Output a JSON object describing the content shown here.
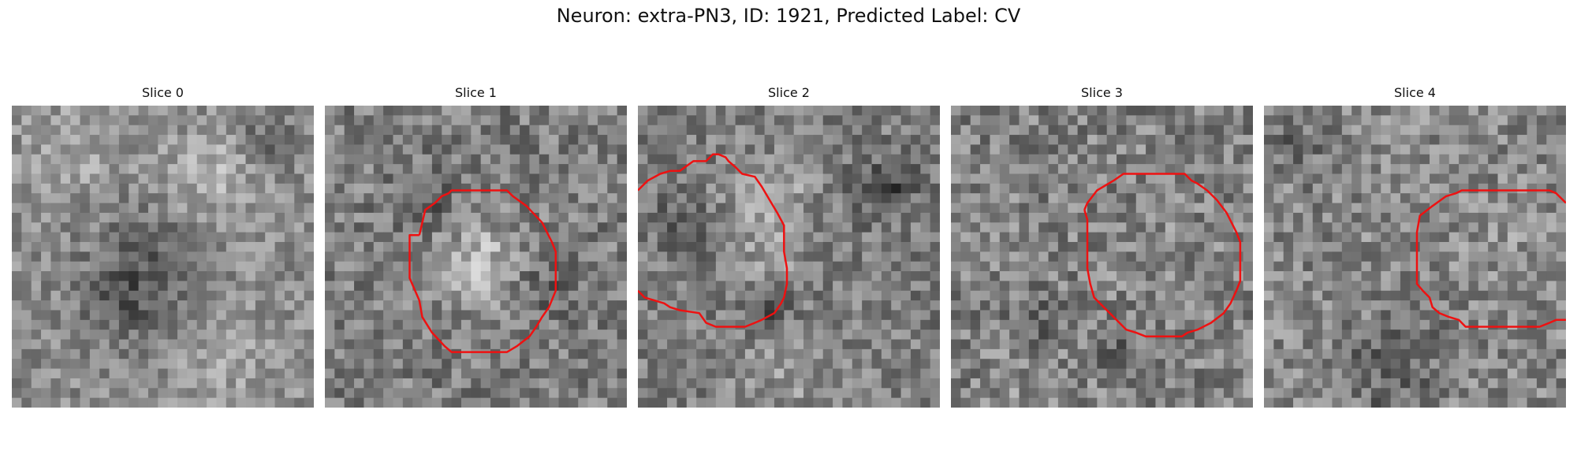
{
  "figure": {
    "title": "Neuron: extra-PN3, ID: 1921, Predicted Label: CV"
  },
  "panels": [
    {
      "title": "Slice 0",
      "has_contour": false
    },
    {
      "title": "Slice 1",
      "has_contour": true
    },
    {
      "title": "Slice 2",
      "has_contour": true
    },
    {
      "title": "Slice 3",
      "has_contour": true
    },
    {
      "title": "Slice 4",
      "has_contour": true
    }
  ],
  "colors": {
    "contour": "#ee1111",
    "background": "#ffffff",
    "colormap": "grayscale"
  }
}
